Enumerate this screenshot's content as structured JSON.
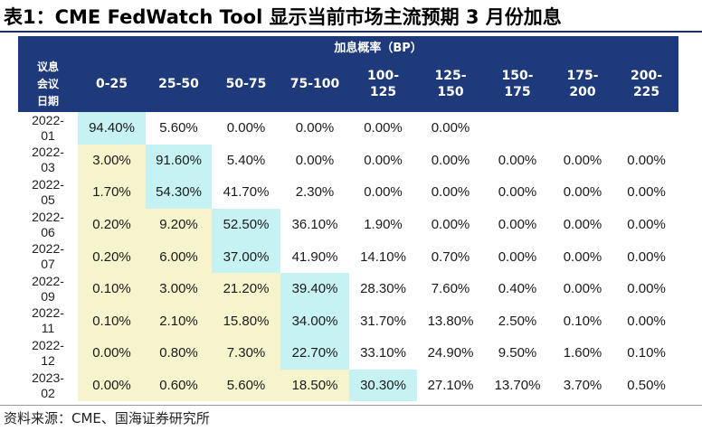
{
  "title": "表1：CME FedWatch Tool 显示当前市场主流预期 3 月份加息",
  "table": {
    "group_header": "加息概率（BP）",
    "row_header_lines": [
      "议息",
      "会议",
      "日期"
    ],
    "columns": [
      {
        "line1": "0-25",
        "line2": ""
      },
      {
        "line1": "25-50",
        "line2": ""
      },
      {
        "line1": "50-75",
        "line2": ""
      },
      {
        "line1": "75-100",
        "line2": ""
      },
      {
        "line1": "100-",
        "line2": "125"
      },
      {
        "line1": "125-",
        "line2": "150"
      },
      {
        "line1": "150-",
        "line2": "175"
      },
      {
        "line1": "175-",
        "line2": "200"
      },
      {
        "line1": "200-",
        "line2": "225"
      }
    ],
    "rows": [
      {
        "date1": "2022-",
        "date2": "01",
        "cells": [
          "94.40%",
          "5.60%",
          "0.00%",
          "0.00%",
          "0.00%",
          "0.00%",
          "",
          "",
          ""
        ],
        "highlight": 0
      },
      {
        "date1": "2022-",
        "date2": "03",
        "cells": [
          "3.00%",
          "91.60%",
          "5.40%",
          "0.00%",
          "0.00%",
          "0.00%",
          "0.00%",
          "0.00%",
          "0.00%"
        ],
        "highlight": 1
      },
      {
        "date1": "2022-",
        "date2": "05",
        "cells": [
          "1.70%",
          "54.30%",
          "41.70%",
          "2.30%",
          "0.00%",
          "0.00%",
          "0.00%",
          "0.00%",
          "0.00%"
        ],
        "highlight": 1
      },
      {
        "date1": "2022-",
        "date2": "06",
        "cells": [
          "0.20%",
          "9.20%",
          "52.50%",
          "36.10%",
          "1.90%",
          "0.00%",
          "0.00%",
          "0.00%",
          "0.00%"
        ],
        "highlight": 2
      },
      {
        "date1": "2022-",
        "date2": "07",
        "cells": [
          "0.20%",
          "6.00%",
          "37.00%",
          "41.90%",
          "14.10%",
          "0.70%",
          "0.00%",
          "0.00%",
          "0.00%"
        ],
        "highlight": 2
      },
      {
        "date1": "2022-",
        "date2": "09",
        "cells": [
          "0.10%",
          "3.00%",
          "21.20%",
          "39.40%",
          "28.30%",
          "7.60%",
          "0.40%",
          "0.00%",
          "0.00%"
        ],
        "highlight": 3
      },
      {
        "date1": "2022-",
        "date2": "11",
        "cells": [
          "0.10%",
          "2.10%",
          "15.80%",
          "34.00%",
          "31.70%",
          "13.80%",
          "2.50%",
          "0.10%",
          "0.00%"
        ],
        "highlight": 3
      },
      {
        "date1": "2022-",
        "date2": "12",
        "cells": [
          "0.00%",
          "0.80%",
          "7.30%",
          "22.70%",
          "33.10%",
          "24.90%",
          "9.50%",
          "1.60%",
          "0.10%"
        ],
        "highlight": 3
      },
      {
        "date1": "2023-",
        "date2": "02",
        "cells": [
          "0.00%",
          "0.60%",
          "5.60%",
          "18.50%",
          "30.30%",
          "27.10%",
          "13.70%",
          "3.70%",
          "0.50%"
        ],
        "highlight": 4
      }
    ]
  },
  "source": "资料来源：CME、国海证券研究所",
  "colors": {
    "header_bg": "#1f3a7a",
    "highlight_cell": "#c6f2f4",
    "lower_region": "#f6f4cc"
  }
}
